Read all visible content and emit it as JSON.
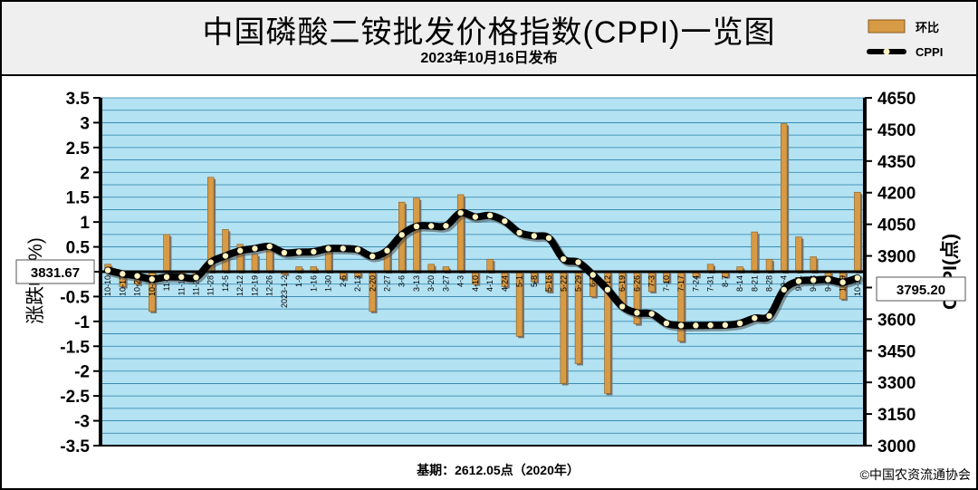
{
  "header": {
    "title": "中国磷酸二铵批发价格指数(CPPI)一览图",
    "subtitle": "2023年10月16日发布"
  },
  "legend": {
    "bar_label": "环比",
    "line_label": "CPPI"
  },
  "callouts": {
    "start_value": "3831.67",
    "end_value": "3795.20"
  },
  "footer": {
    "base_note": "基期：2612.05点（2020年）",
    "copyright": "©中国农资流通协会"
  },
  "colors": {
    "bar": "#d79a45",
    "bar_edge": "#8a5a1e",
    "line": "#000000",
    "marker": "#fff3c0",
    "plot_bg": "#b3e2f2",
    "grid": "#2a7fa8"
  },
  "chart_data": {
    "type": "bar+line",
    "categories": [
      "10-10",
      "10-17",
      "10-24",
      "10-31",
      "11-7",
      "11-14",
      "11-21",
      "11-28",
      "12-5",
      "12-12",
      "12-19",
      "12-26",
      "2023-1-2",
      "1-9",
      "1-16",
      "1-30",
      "2-6",
      "2-13",
      "2-20",
      "2-27",
      "3-6",
      "3-13",
      "3-20",
      "3-27",
      "4-3",
      "4-10",
      "4-17",
      "4-24",
      "5-1",
      "5-8",
      "5-16",
      "5-22",
      "5-29",
      "6-5",
      "6-12",
      "6-19",
      "6-26",
      "7-3",
      "7-10",
      "7-17",
      "7-24",
      "7-31",
      "8-7",
      "8-14",
      "8-21",
      "8-28",
      "9-4",
      "9-11",
      "9-18",
      "9-25",
      "10-9",
      "10-16"
    ],
    "series": [
      {
        "name": "环比",
        "type": "bar",
        "axis": "left",
        "values": [
          0.15,
          -0.3,
          -0.25,
          -0.8,
          0.75,
          -0.1,
          -0.1,
          1.9,
          0.85,
          0.55,
          0.35,
          0.45,
          -0.05,
          0.1,
          0.1,
          0.5,
          -0.15,
          -0.1,
          -0.8,
          0.45,
          1.4,
          1.48,
          0.15,
          0.1,
          1.55,
          -0.25,
          0.25,
          -0.3,
          -1.3,
          -0.2,
          -0.4,
          -2.25,
          -1.85,
          -0.5,
          -2.45,
          -0.7,
          -1.05,
          -0.4,
          -0.2,
          -1.4,
          -0.1,
          0.15,
          -0.1,
          0.1,
          0.8,
          0.25,
          2.98,
          0.7,
          0.3,
          -0.2,
          -0.55,
          1.6
        ]
      },
      {
        "name": "CPPI",
        "type": "line",
        "axis": "right",
        "values": [
          3831.67,
          3815,
          3805,
          3790,
          3800,
          3800,
          3798,
          3870,
          3900,
          3925,
          3935,
          3945,
          3915,
          3918,
          3920,
          3935,
          3935,
          3930,
          3898,
          3925,
          4000,
          4040,
          4042,
          4043,
          4104,
          4085,
          4092,
          4065,
          4010,
          3995,
          3985,
          3885,
          3870,
          3810,
          3740,
          3660,
          3630,
          3625,
          3580,
          3570,
          3570,
          3571,
          3572,
          3580,
          3605,
          3615,
          3740,
          3780,
          3785,
          3788,
          3775,
          3795.2
        ]
      }
    ],
    "left_axis": {
      "label": "涨跌幅(%)",
      "min": -3.5,
      "max": 3.5,
      "step": 0.5,
      "ticks": [
        "3.5",
        "3",
        "2.5",
        "2",
        "1.5",
        "1",
        "0.5",
        "0",
        "-0.5",
        "-1",
        "-1.5",
        "-2",
        "-2.5",
        "-3",
        "-3.5"
      ]
    },
    "right_axis": {
      "label": "CPPI(点)",
      "min": 3000,
      "max": 4650,
      "ticks": [
        "4650",
        "4500",
        "4350",
        "4200",
        "4050",
        "3900",
        "3750",
        "3600",
        "3450",
        "3300",
        "3150",
        "3000"
      ]
    },
    "grid": true,
    "legend_position": "top-right"
  }
}
